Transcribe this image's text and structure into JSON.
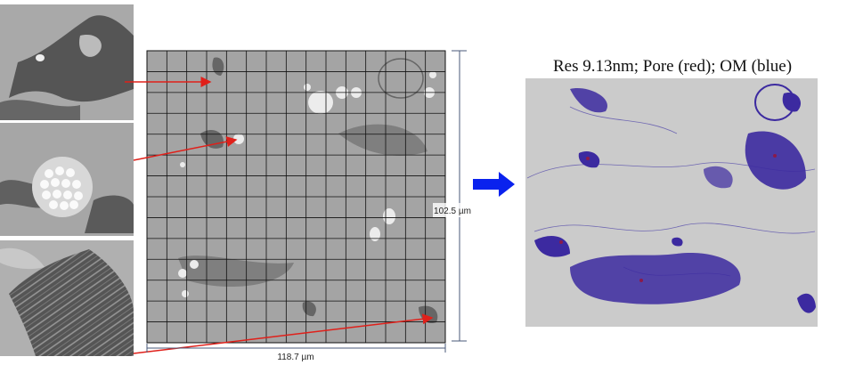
{
  "figure": {
    "title": "Res 9.13nm; Pore (red); OM (blue)",
    "height_label": "102.5 µm",
    "width_label": "118.7 µm"
  }
}
